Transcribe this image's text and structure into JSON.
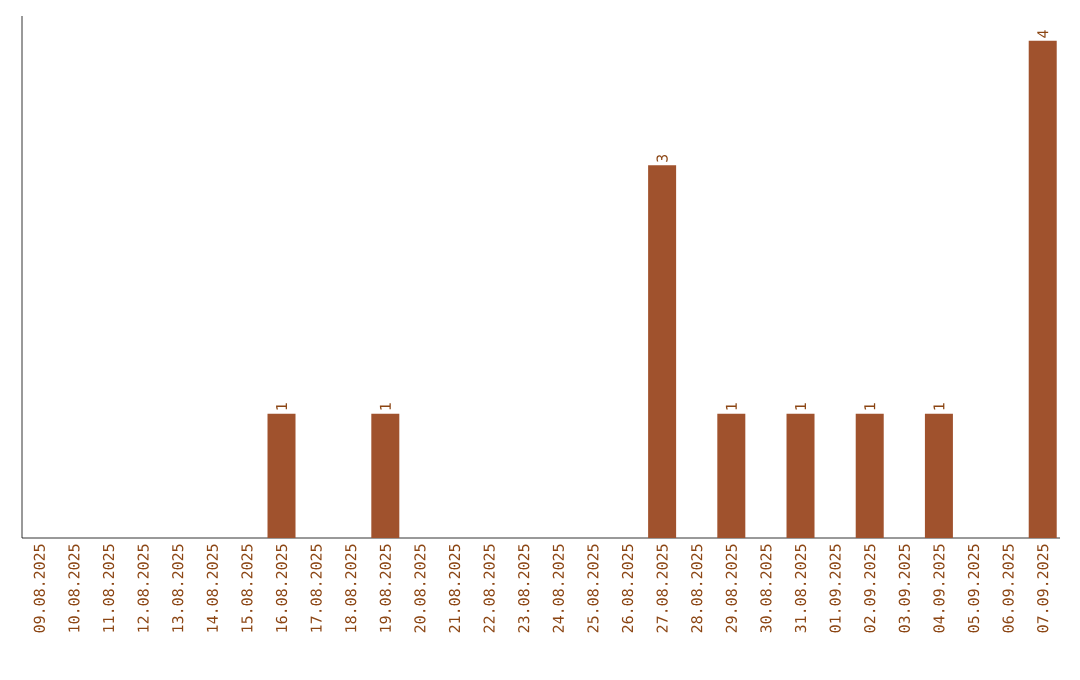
{
  "chart_data": {
    "type": "bar",
    "categories": [
      "09.08.2025",
      "10.08.2025",
      "11.08.2025",
      "12.08.2025",
      "13.08.2025",
      "14.08.2025",
      "15.08.2025",
      "16.08.2025",
      "17.08.2025",
      "18.08.2025",
      "19.08.2025",
      "20.08.2025",
      "21.08.2025",
      "22.08.2025",
      "23.08.2025",
      "24.08.2025",
      "25.08.2025",
      "26.08.2025",
      "27.08.2025",
      "28.08.2025",
      "29.08.2025",
      "30.08.2025",
      "31.08.2025",
      "01.09.2025",
      "02.09.2025",
      "03.09.2025",
      "04.09.2025",
      "05.09.2025",
      "06.09.2025",
      "07.09.2025"
    ],
    "values": [
      0,
      0,
      0,
      0,
      0,
      0,
      0,
      1,
      0,
      0,
      1,
      0,
      0,
      0,
      0,
      0,
      0,
      0,
      3,
      0,
      1,
      0,
      1,
      0,
      1,
      0,
      1,
      0,
      0,
      4
    ],
    "value_labels": [
      null,
      null,
      null,
      null,
      null,
      null,
      null,
      "1",
      null,
      null,
      "1",
      null,
      null,
      null,
      null,
      null,
      null,
      null,
      "3",
      null,
      "1",
      null,
      "1",
      null,
      "1",
      null,
      "1",
      null,
      null,
      "4"
    ],
    "color": "#a0522d",
    "ylim": [
      0,
      4.2
    ],
    "tick_labels": "x"
  }
}
